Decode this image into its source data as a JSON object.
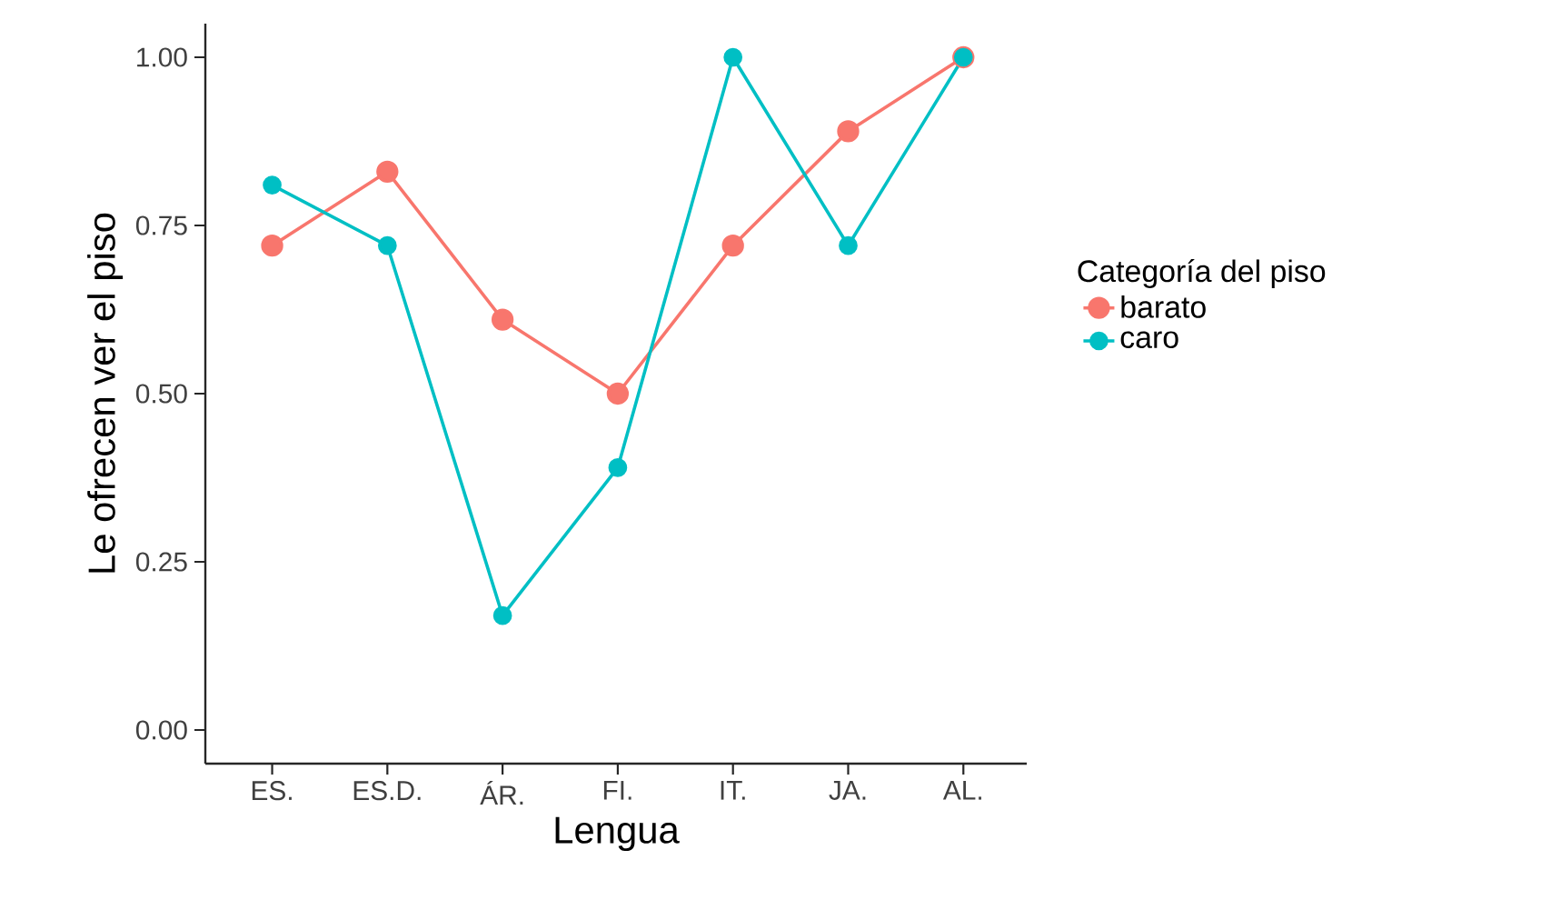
{
  "chart_data": {
    "type": "line",
    "xlabel": "Lengua",
    "ylabel": "Le ofrecen ver el piso",
    "legend_title": "Categoría del piso",
    "categories": [
      "ES.",
      "ES.D.",
      "ÁR.",
      "FI.",
      "IT.",
      "JA.",
      "AL."
    ],
    "series": [
      {
        "name": "barato",
        "color": "#f8766d",
        "values": [
          0.72,
          0.83,
          0.61,
          0.5,
          0.72,
          0.89,
          1.0
        ]
      },
      {
        "name": "caro",
        "color": "#00bfc4",
        "values": [
          0.81,
          0.72,
          0.17,
          0.39,
          1.0,
          0.72,
          1.0
        ]
      }
    ],
    "ylim": [
      -0.05,
      1.05
    ],
    "yticks": [
      {
        "value": 0,
        "label": "0.00"
      },
      {
        "value": 0.25,
        "label": "0.25"
      },
      {
        "value": 0.5,
        "label": "0.50"
      },
      {
        "value": 0.75,
        "label": "0.75"
      },
      {
        "value": 1,
        "label": "1.00"
      }
    ],
    "marker": "circle",
    "line_style": "solid",
    "grid": false,
    "legend": "right"
  }
}
